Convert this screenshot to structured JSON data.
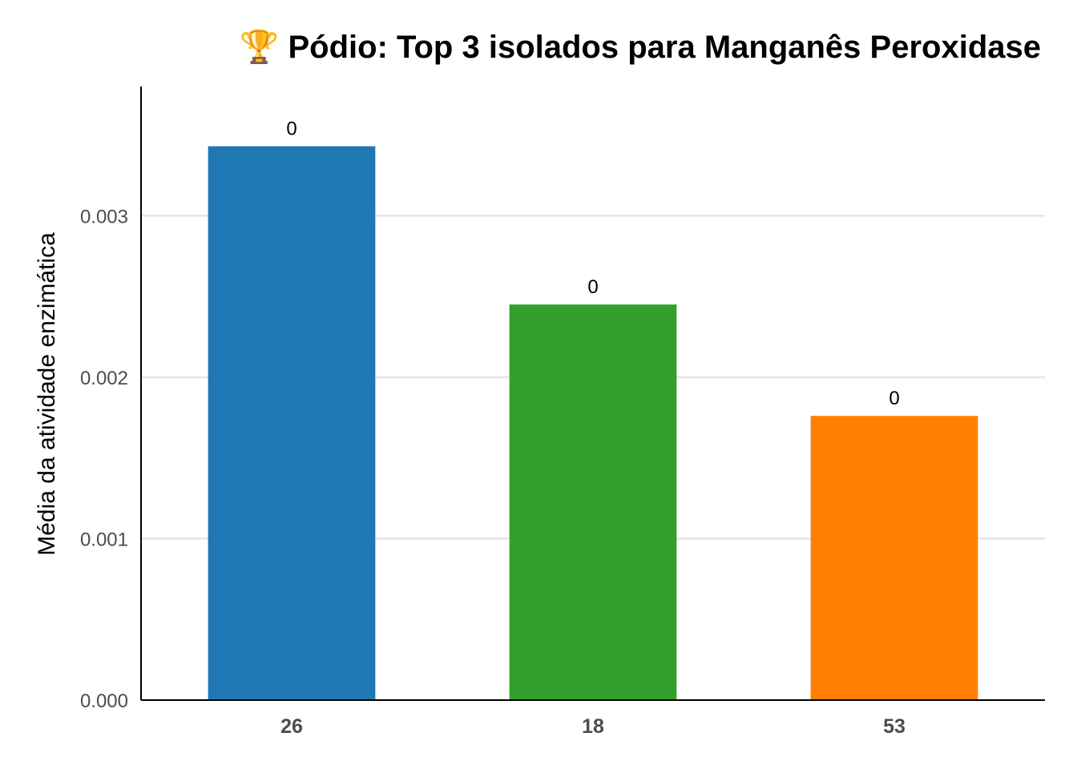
{
  "chart_data": {
    "type": "bar",
    "title": "🏆 Pódio: Top 3 isolados para Manganês Peroxidase",
    "xlabel": "",
    "ylabel": "Média da atividade enzimática",
    "categories": [
      "26",
      "18",
      "53"
    ],
    "values": [
      0.00343,
      0.00245,
      0.00176
    ],
    "data_labels": [
      "0",
      "0",
      "0"
    ],
    "colors": [
      "#1f77b4",
      "#33a02c",
      "#ff7f00"
    ],
    "ylim": [
      0,
      0.0038
    ],
    "yticks": [
      0,
      0.001,
      0.002,
      0.003
    ],
    "ytick_labels": [
      "0.000",
      "0.001",
      "0.002",
      "0.003"
    ],
    "grid": "horizontal",
    "legend": "none"
  }
}
